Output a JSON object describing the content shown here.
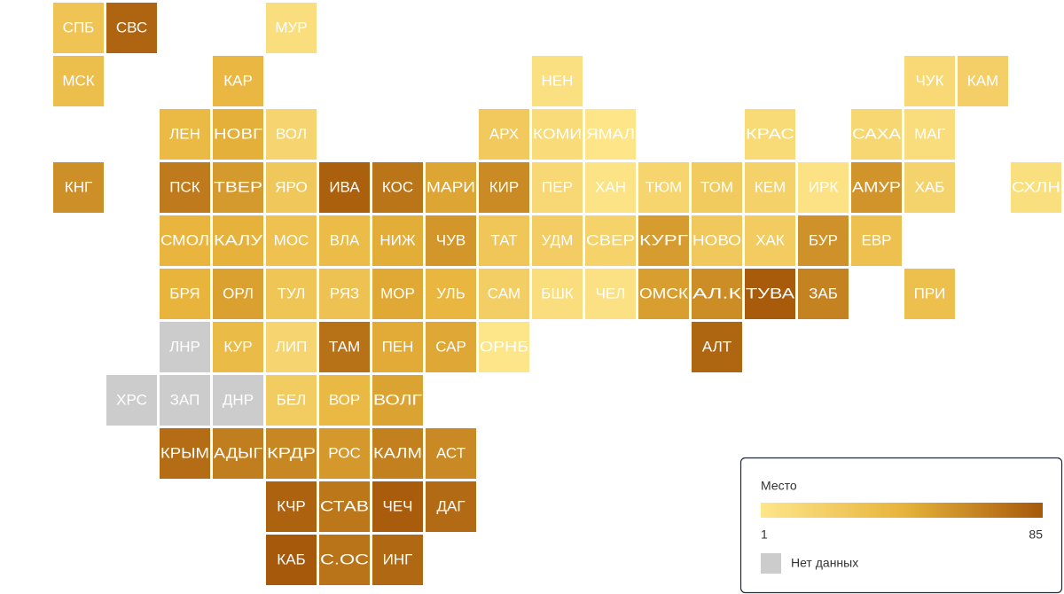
{
  "tiles": [
    {
      "label": "СПБ",
      "value": 30
    },
    {
      "label": "СВС",
      "value": 80
    },
    {
      "label": "МУР",
      "value": 8
    },
    {
      "label": "МСК",
      "value": 35
    },
    {
      "label": "КАР",
      "value": 40
    },
    {
      "label": "НЕН",
      "value": 6
    },
    {
      "label": "ЧУК",
      "value": 12
    },
    {
      "label": "КАМ",
      "value": 20
    },
    {
      "label": "ЛЕН",
      "value": 38
    },
    {
      "label": "НОВГ",
      "value": 45
    },
    {
      "label": "ВОЛ",
      "value": 15
    },
    {
      "label": "АРХ",
      "value": 25
    },
    {
      "label": "КОМИ",
      "value": 10
    },
    {
      "label": "ЯМАЛ",
      "value": 2
    },
    {
      "label": "КРАС",
      "value": 11
    },
    {
      "label": "САХА",
      "value": 14
    },
    {
      "label": "МАГ",
      "value": 9
    },
    {
      "label": "КНГ",
      "value": 60
    },
    {
      "label": "ПСК",
      "value": 70
    },
    {
      "label": "ТВЕР",
      "value": 55
    },
    {
      "label": "ЯРО",
      "value": 27
    },
    {
      "label": "ИВА",
      "value": 82
    },
    {
      "label": "КОС",
      "value": 72
    },
    {
      "label": "МАРИ",
      "value": 50
    },
    {
      "label": "КИР",
      "value": 62
    },
    {
      "label": "ПЕР",
      "value": 13
    },
    {
      "label": "ХАН",
      "value": 3
    },
    {
      "label": "ТЮМ",
      "value": 16
    },
    {
      "label": "ТОМ",
      "value": 24
    },
    {
      "label": "КЕМ",
      "value": 19
    },
    {
      "label": "ИРК",
      "value": 4
    },
    {
      "label": "АМУР",
      "value": 58
    },
    {
      "label": "ХАБ",
      "value": 17
    },
    {
      "label": "СХЛН",
      "value": 7
    },
    {
      "label": "СМОЛ",
      "value": 42
    },
    {
      "label": "КАЛУ",
      "value": 44
    },
    {
      "label": "МОС",
      "value": 32
    },
    {
      "label": "ВЛА",
      "value": 36
    },
    {
      "label": "НИЖ",
      "value": 46
    },
    {
      "label": "ЧУВ",
      "value": 57
    },
    {
      "label": "ТАТ",
      "value": 28
    },
    {
      "label": "УДМ",
      "value": 22
    },
    {
      "label": "СВЕР",
      "value": 18
    },
    {
      "label": "КУРГ",
      "value": 54
    },
    {
      "label": "НОВО",
      "value": 26
    },
    {
      "label": "ХАК",
      "value": 23
    },
    {
      "label": "БУР",
      "value": 59
    },
    {
      "label": "ЕВР",
      "value": 33
    },
    {
      "label": "БРЯ",
      "value": 43
    },
    {
      "label": "ОРЛ",
      "value": 52
    },
    {
      "label": "ТУЛ",
      "value": 29
    },
    {
      "label": "РЯЗ",
      "value": 31
    },
    {
      "label": "МОР",
      "value": 48
    },
    {
      "label": "УЛЬ",
      "value": 41
    },
    {
      "label": "САМ",
      "value": 21
    },
    {
      "label": "БШК",
      "value": 8
    },
    {
      "label": "ЧЕЛ",
      "value": 5
    },
    {
      "label": "ОМСК",
      "value": 53
    },
    {
      "label": "АЛ.К",
      "value": 61
    },
    {
      "label": "ТУВА",
      "value": 84
    },
    {
      "label": "ЗАБ",
      "value": 66
    },
    {
      "label": "ПРИ",
      "value": 34
    },
    {
      "label": "ЛНР",
      "value": null
    },
    {
      "label": "КУР",
      "value": 37
    },
    {
      "label": "ЛИП",
      "value": 15
    },
    {
      "label": "ТАМ",
      "value": 74
    },
    {
      "label": "ПЕН",
      "value": 47
    },
    {
      "label": "САР",
      "value": 49
    },
    {
      "label": "ОРНБ",
      "value": 1
    },
    {
      "label": "АЛТ",
      "value": 79
    },
    {
      "label": "ХРС",
      "value": null
    },
    {
      "label": "ЗАП",
      "value": null
    },
    {
      "label": "ДНР",
      "value": null
    },
    {
      "label": "БЕЛ",
      "value": 23
    },
    {
      "label": "ВОР",
      "value": 39
    },
    {
      "label": "ВОЛГ",
      "value": 51
    },
    {
      "label": "КРЫМ",
      "value": 76
    },
    {
      "label": "АДЫГ",
      "value": 68
    },
    {
      "label": "КРДР",
      "value": 64
    },
    {
      "label": "РОС",
      "value": 56
    },
    {
      "label": "КАЛМ",
      "value": 67
    },
    {
      "label": "АСТ",
      "value": 63
    },
    {
      "label": "КЧР",
      "value": 81
    },
    {
      "label": "СТАВ",
      "value": 71
    },
    {
      "label": "ЧЕЧ",
      "value": 83
    },
    {
      "label": "ДАГ",
      "value": 77
    },
    {
      "label": "КАБ",
      "value": 85
    },
    {
      "label": "С.ОС",
      "value": 73
    },
    {
      "label": "ИНГ",
      "value": 78
    }
  ],
  "legend": {
    "title": "Место",
    "min": 1,
    "max": 85,
    "colors": [
      "#fde68a",
      "#e8b43c",
      "#a6590a"
    ],
    "no_data_label": "Нет данных",
    "no_data_color": "#cccccc"
  }
}
